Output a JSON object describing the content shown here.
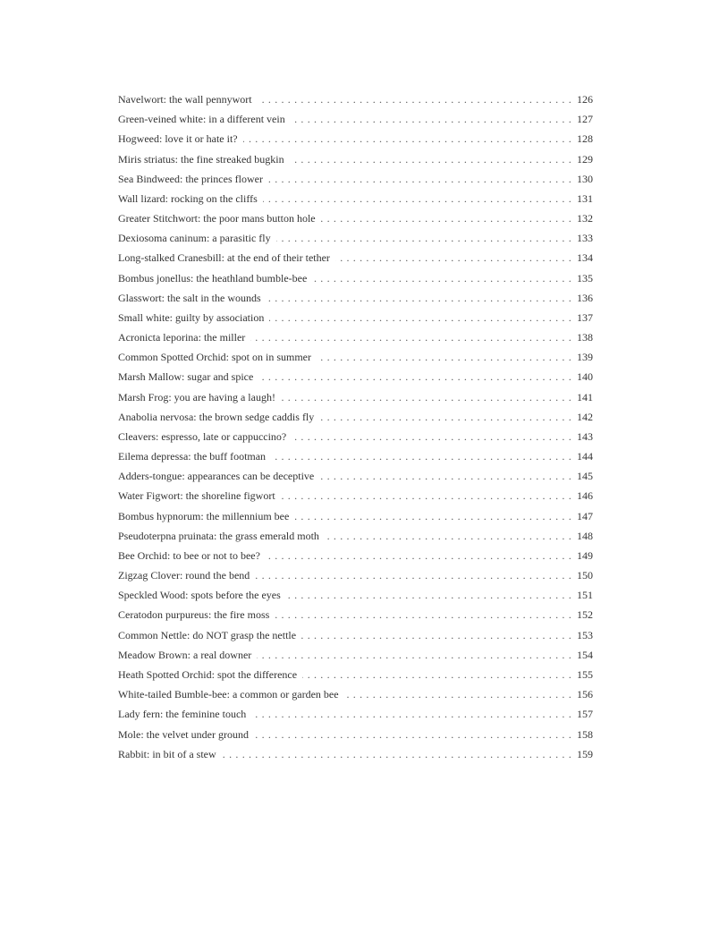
{
  "toc": [
    {
      "title": "Navelwort: the wall pennywort",
      "page": "126"
    },
    {
      "title": "Green-veined white: in a different vein",
      "page": "127"
    },
    {
      "title": "Hogweed: love it or hate it?",
      "page": "128"
    },
    {
      "title": "Miris striatus: the fine streaked bugkin",
      "page": "129"
    },
    {
      "title": "Sea Bindweed: the princes flower",
      "page": "130"
    },
    {
      "title": "Wall lizard: rocking on the cliffs",
      "page": "131"
    },
    {
      "title": "Greater Stitchwort: the poor mans button hole",
      "page": "132"
    },
    {
      "title": "Dexiosoma caninum: a parasitic fly",
      "page": "133"
    },
    {
      "title": "Long-stalked Cranesbill: at the end of their tether",
      "page": "134"
    },
    {
      "title": "Bombus jonellus: the heathland bumble-bee",
      "page": "135"
    },
    {
      "title": "Glasswort: the salt in the wounds",
      "page": "136"
    },
    {
      "title": "Small white: guilty by association",
      "page": "137"
    },
    {
      "title": "Acronicta leporina: the miller",
      "page": "138"
    },
    {
      "title": "Common Spotted Orchid: spot on in summer",
      "page": "139"
    },
    {
      "title": "Marsh Mallow: sugar and spice",
      "page": "140"
    },
    {
      "title": "Marsh Frog: you are having a laugh!",
      "page": "141"
    },
    {
      "title": "Anabolia nervosa: the brown sedge caddis fly",
      "page": "142"
    },
    {
      "title": "Cleavers: espresso, late or cappuccino?",
      "page": "143"
    },
    {
      "title": "Eilema depressa: the buff footman",
      "page": "144"
    },
    {
      "title": "Adders-tongue: appearances can be deceptive",
      "page": "145"
    },
    {
      "title": "Water Figwort: the shoreline figwort",
      "page": "146"
    },
    {
      "title": "Bombus hypnorum: the millennium bee",
      "page": "147"
    },
    {
      "title": "Pseudoterpna pruinata: the grass emerald moth",
      "page": "148"
    },
    {
      "title": "Bee Orchid: to bee or not to bee?",
      "page": "149"
    },
    {
      "title": "Zigzag Clover: round the bend",
      "page": "150"
    },
    {
      "title": "Speckled Wood: spots before the eyes",
      "page": "151"
    },
    {
      "title": "Ceratodon purpureus: the fire moss",
      "page": "152"
    },
    {
      "title": "Common Nettle: do NOT grasp the nettle",
      "page": "153"
    },
    {
      "title": "Meadow Brown: a real downer",
      "page": "154"
    },
    {
      "title": "Heath Spotted Orchid: spot the difference",
      "page": "155"
    },
    {
      "title": "White-tailed Bumble-bee: a common or garden bee",
      "page": "156"
    },
    {
      "title": "Lady fern: the feminine touch",
      "page": "157"
    },
    {
      "title": "Mole: the velvet under ground",
      "page": "158"
    },
    {
      "title": "Rabbit: in bit of a stew",
      "page": "159"
    }
  ]
}
